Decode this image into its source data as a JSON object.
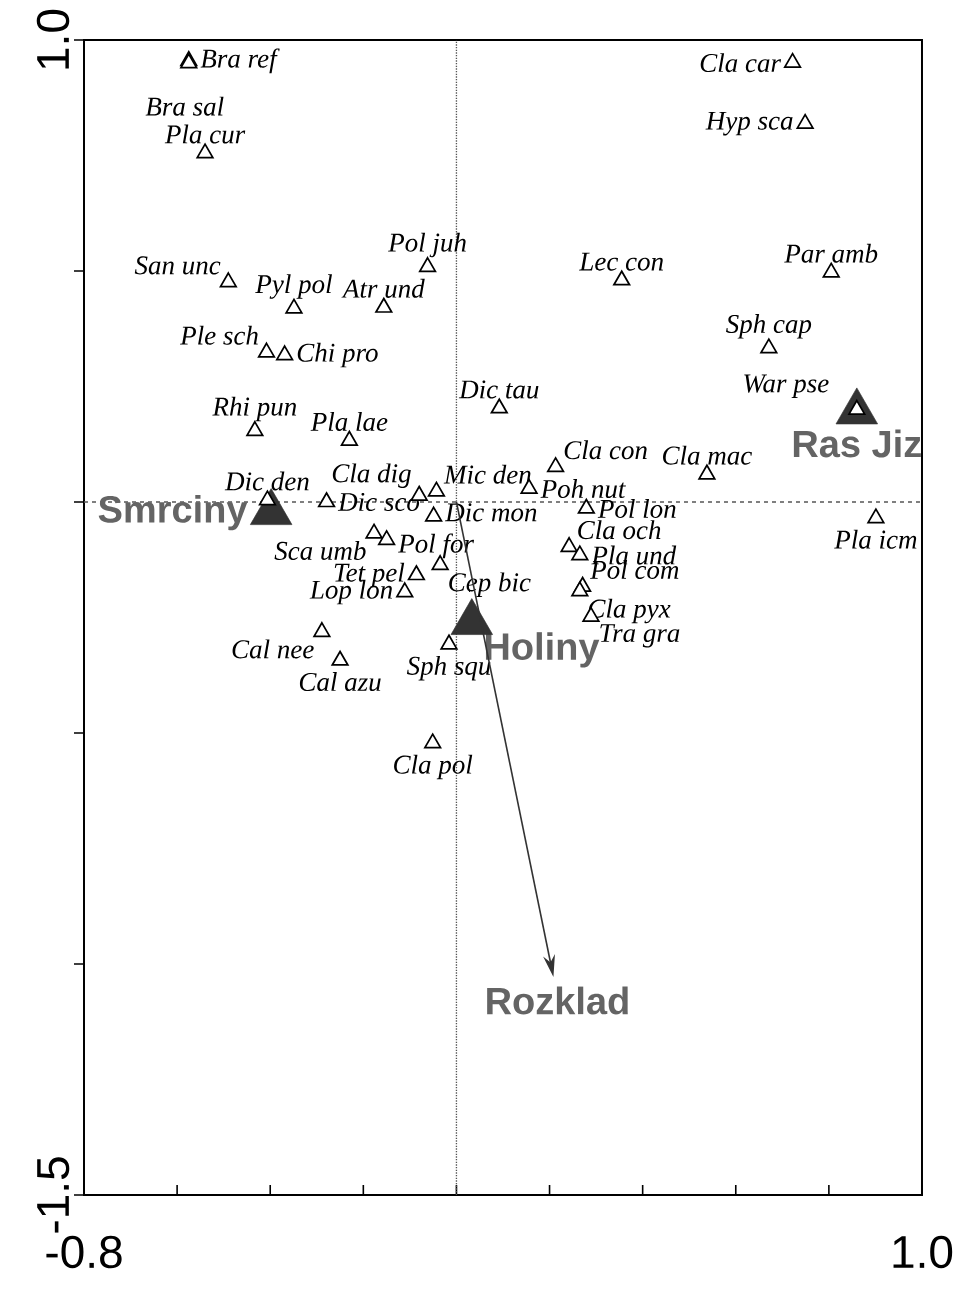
{
  "chart_data": {
    "type": "scatter",
    "marker": "triangle",
    "xlim": [
      -0.8,
      1.0
    ],
    "ylim": [
      -1.5,
      1.0
    ],
    "xticks": [
      {
        "value": -0.8,
        "label": "-0.8"
      },
      {
        "value": -0.6,
        "label": null
      },
      {
        "value": -0.4,
        "label": null
      },
      {
        "value": -0.2,
        "label": null
      },
      {
        "value": 0.0,
        "label": null
      },
      {
        "value": 0.2,
        "label": null
      },
      {
        "value": 0.4,
        "label": null
      },
      {
        "value": 0.6,
        "label": null
      },
      {
        "value": 0.8,
        "label": null
      },
      {
        "value": 1.0,
        "label": "1.0"
      }
    ],
    "yticks": [
      {
        "value": -1.5,
        "label": "-1.5"
      },
      {
        "value": -1.0,
        "label": null
      },
      {
        "value": -0.5,
        "label": null
      },
      {
        "value": 0.0,
        "label": null
      },
      {
        "value": 0.5,
        "label": null
      },
      {
        "value": 1.0,
        "label": "1.0"
      }
    ],
    "ref_lines": [
      {
        "axis": "x",
        "value": 0,
        "color": "#555555",
        "line_style": "dotted"
      },
      {
        "axis": "y",
        "value": 0,
        "color": "#555555",
        "line_style": "dashed"
      }
    ],
    "series": [
      {
        "color": "#000000",
        "x": [
          -0.575,
          -0.575,
          -0.54,
          -0.49,
          -0.349,
          -0.156,
          -0.062,
          -0.408,
          -0.369,
          -0.433,
          -0.23,
          0.092,
          0.355,
          0.805,
          0.671,
          0.722,
          0.749,
          0.86,
          0.538,
          0.213,
          0.156,
          0.279,
          0.901,
          -0.406,
          -0.08,
          -0.043,
          -0.279,
          -0.049,
          -0.177,
          -0.15,
          -0.035,
          -0.086,
          -0.111,
          0.242,
          0.265,
          0.271,
          0.265,
          0.289,
          -0.289,
          -0.25,
          -0.016,
          -0.051
        ],
        "values": [
          0.955,
          0.95,
          0.755,
          0.476,
          0.419,
          0.421,
          0.509,
          0.324,
          0.318,
          0.154,
          0.133,
          0.203,
          0.48,
          0.497,
          0.333,
          0.951,
          0.819,
          0.2,
          0.06,
          0.076,
          0.029,
          -0.014,
          -0.035,
          0.004,
          0.014,
          0.023,
          0.0,
          -0.031,
          -0.068,
          -0.082,
          -0.136,
          -0.158,
          -0.195,
          -0.097,
          -0.115,
          -0.183,
          -0.193,
          -0.248,
          -0.281,
          -0.343,
          -0.308,
          -0.522
        ]
      },
      {
        "type": "scatter",
        "name": "Smrciny",
        "color": "#333333",
        "x": [
          -0.398
        ],
        "values": [
          -0.023
        ]
      },
      {
        "type": "scatter",
        "name": "Holiny",
        "color": "#333333",
        "x": [
          0.033
        ],
        "values": [
          -0.261
        ]
      },
      {
        "type": "scatter",
        "name": "Ras Jiz",
        "color": "#333333",
        "x": [
          0.86
        ],
        "values": [
          0.195
        ]
      }
    ],
    "annotations": [
      {
        "text": "Bra ref",
        "x": -0.575,
        "y": 0.955
      },
      {
        "text": "Bra sal",
        "x": -0.575,
        "y": 0.95
      },
      {
        "text": "Pla cur",
        "x": -0.54,
        "y": 0.755
      },
      {
        "text": "San unc",
        "x": -0.49,
        "y": 0.476
      },
      {
        "text": "Pyl pol",
        "x": -0.349,
        "y": 0.419
      },
      {
        "text": "Atr und",
        "x": -0.156,
        "y": 0.421
      },
      {
        "text": "Pol juh",
        "x": -0.062,
        "y": 0.509
      },
      {
        "text": "Ple sch",
        "x": -0.408,
        "y": 0.324
      },
      {
        "text": "Chi pro",
        "x": -0.369,
        "y": 0.318
      },
      {
        "text": "Rhi pun",
        "x": -0.433,
        "y": 0.154
      },
      {
        "text": "Pla lae",
        "x": -0.23,
        "y": 0.133
      },
      {
        "text": "Dic tau",
        "x": 0.092,
        "y": 0.203
      },
      {
        "text": "Lec con",
        "x": 0.355,
        "y": 0.48
      },
      {
        "text": "Par amb",
        "x": 0.805,
        "y": 0.497
      },
      {
        "text": "Sph cap",
        "x": 0.671,
        "y": 0.333
      },
      {
        "text": "Cla car",
        "x": 0.722,
        "y": 0.951
      },
      {
        "text": "Hyp sca",
        "x": 0.749,
        "y": 0.819
      },
      {
        "text": "War pse",
        "x": 0.86,
        "y": 0.2
      },
      {
        "text": "Cla mac",
        "x": 0.538,
        "y": 0.06
      },
      {
        "text": "Cla con",
        "x": 0.213,
        "y": 0.076
      },
      {
        "text": "Poh nut",
        "x": 0.156,
        "y": 0.029
      },
      {
        "text": "Pol lon",
        "x": 0.279,
        "y": -0.014
      },
      {
        "text": "Pla icm",
        "x": 0.901,
        "y": -0.035
      },
      {
        "text": "Dic den",
        "x": -0.406,
        "y": 0.004
      },
      {
        "text": "Cla dig",
        "x": -0.08,
        "y": 0.014
      },
      {
        "text": "Mic den",
        "x": -0.043,
        "y": 0.023
      },
      {
        "text": "Dic sco",
        "x": -0.279,
        "y": 0.0
      },
      {
        "text": "Dic mon",
        "x": -0.049,
        "y": -0.031
      },
      {
        "text": "Sca umb",
        "x": -0.177,
        "y": -0.068
      },
      {
        "text": "Pol for",
        "x": -0.15,
        "y": -0.082
      },
      {
        "text": "Cep bic",
        "x": -0.035,
        "y": -0.136
      },
      {
        "text": "Tet pel",
        "x": -0.086,
        "y": -0.158
      },
      {
        "text": "Lop lon",
        "x": -0.111,
        "y": -0.195
      },
      {
        "text": "Cla och",
        "x": 0.242,
        "y": -0.097
      },
      {
        "text": "Pla und",
        "x": 0.265,
        "y": -0.115
      },
      {
        "text": "Pol com",
        "x": 0.271,
        "y": -0.183
      },
      {
        "text": "Cla pyx",
        "x": 0.265,
        "y": -0.193
      },
      {
        "text": "Tra gra",
        "x": 0.289,
        "y": -0.248
      },
      {
        "text": "Cal nee",
        "x": -0.289,
        "y": -0.281
      },
      {
        "text": "Cal azu",
        "x": -0.25,
        "y": -0.343
      },
      {
        "text": "Sph squ",
        "x": -0.016,
        "y": -0.308
      },
      {
        "text": "Cla pol",
        "x": -0.051,
        "y": -0.522
      },
      "Rozklad"
    ]
  }
}
